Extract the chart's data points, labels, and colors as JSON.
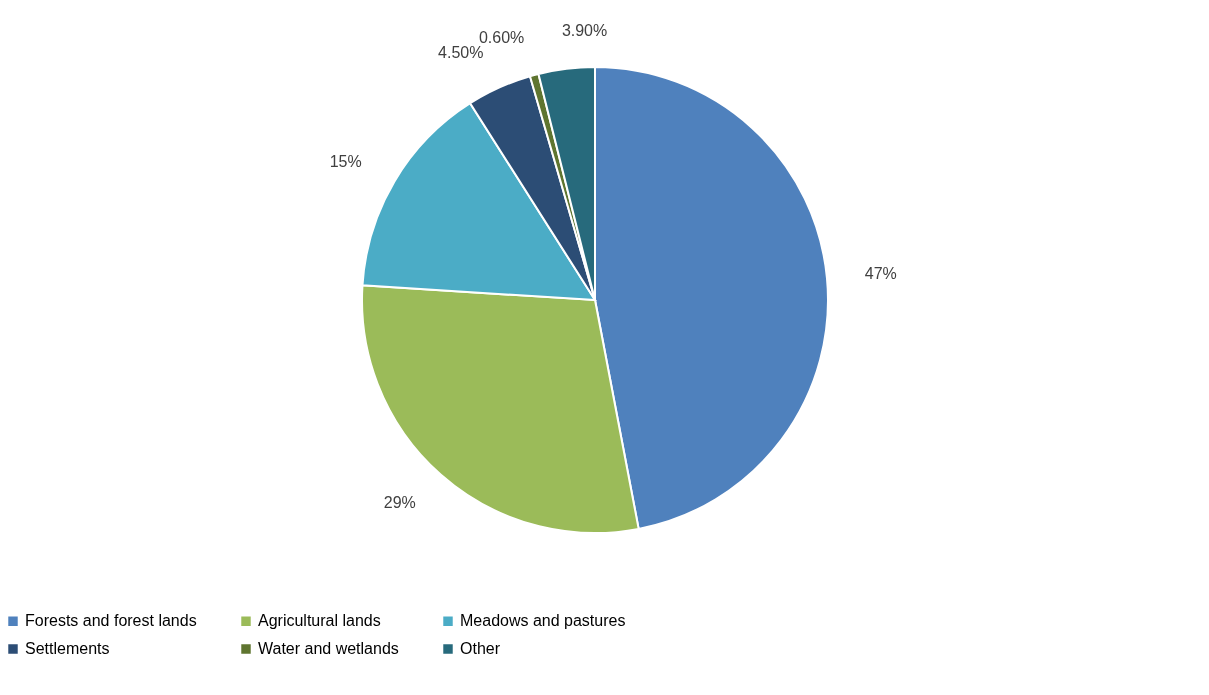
{
  "chart_data": {
    "type": "pie",
    "categories": [
      "Forests and forest lands",
      "Agricultural lands",
      "Meadows and pastures",
      "Settlements",
      "Water and wetlands",
      "Other"
    ],
    "values": [
      47,
      29,
      15,
      4.5,
      0.6,
      3.9
    ],
    "value_labels": [
      "47%",
      "29%",
      "15%",
      "4.50%",
      "0.60%",
      "3.90%"
    ],
    "colors": [
      "#4f81bd",
      "#9bbb59",
      "#4bacc6",
      "#2c4d75",
      "#5f7530",
      "#276a7c"
    ],
    "legend": "bottom"
  }
}
